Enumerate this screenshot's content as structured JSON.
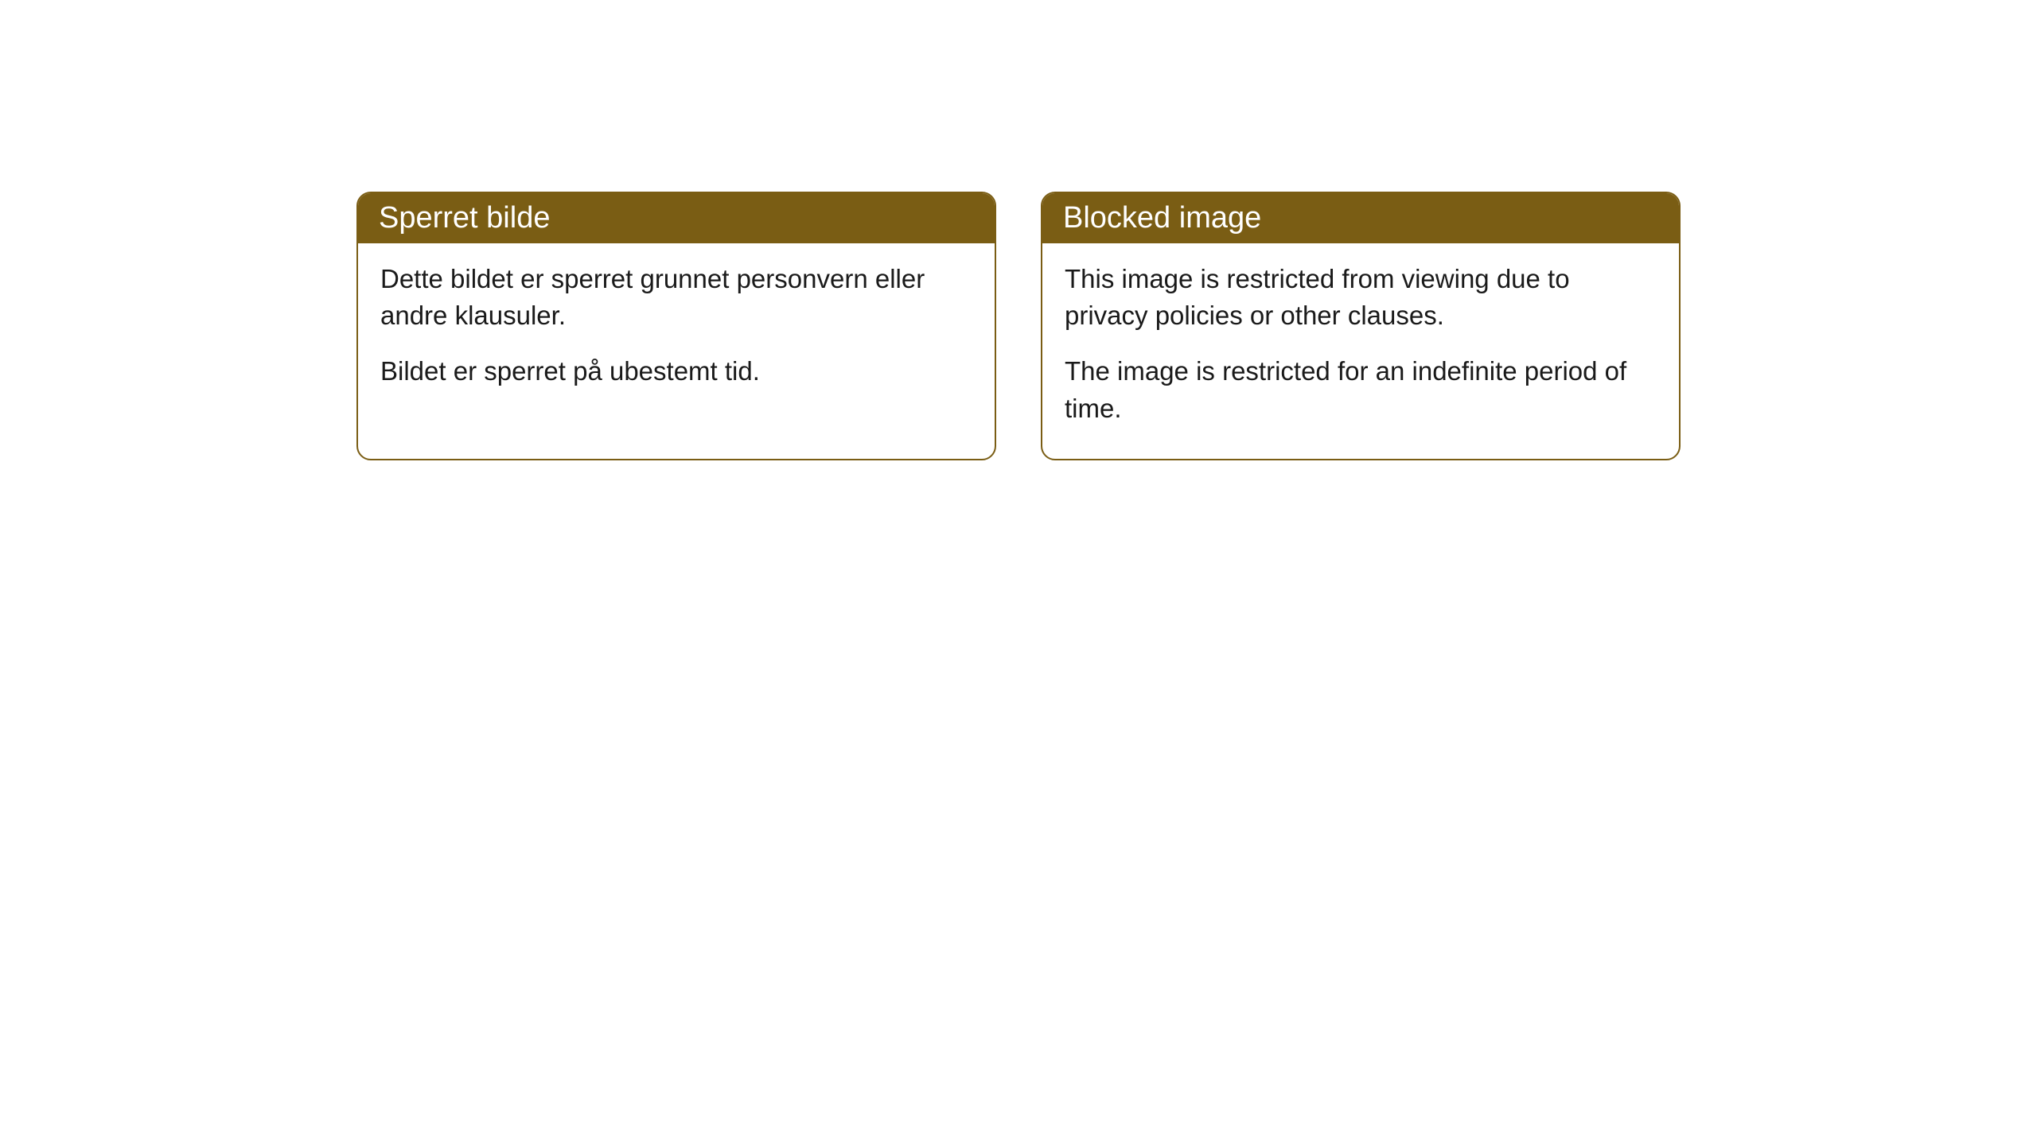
{
  "cards": [
    {
      "title": "Sperret bilde",
      "paragraph1": "Dette bildet er sperret grunnet personvern eller andre klausuler.",
      "paragraph2": "Bildet er sperret på ubestemt tid."
    },
    {
      "title": "Blocked image",
      "paragraph1": "This image is restricted from viewing due to privacy policies or other clauses.",
      "paragraph2": "The image is restricted for an indefinite period of time."
    }
  ],
  "style": {
    "header_bg_color": "#7a5d14",
    "header_text_color": "#ffffff",
    "border_color": "#7a5d14",
    "body_text_color": "#1a1a1a",
    "background_color": "#ffffff",
    "border_radius": 18,
    "title_fontsize": 38,
    "body_fontsize": 33
  }
}
